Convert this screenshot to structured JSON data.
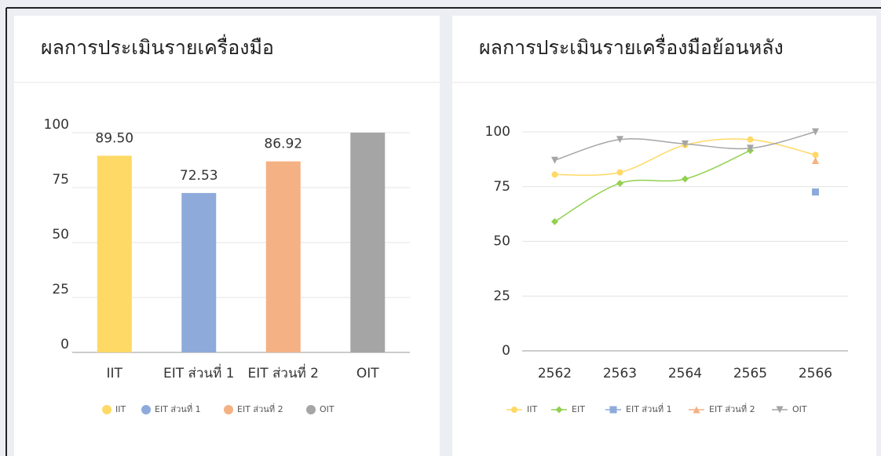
{
  "chart_data": [
    {
      "type": "bar",
      "title": "ผลการประเมินรายเครื่องมือ",
      "categories": [
        "IIT",
        "EIT ส่วนที่ 1",
        "EIT ส่วนที่ 2",
        "OIT"
      ],
      "values": [
        89.5,
        72.53,
        86.92,
        100
      ],
      "value_labels": [
        "89.50",
        "72.53",
        "86.92",
        null
      ],
      "colors": [
        "#ffd966",
        "#8eaadb",
        "#f4b183",
        "#a5a5a5"
      ],
      "ylim": [
        0,
        100
      ],
      "yticks": [
        0,
        25,
        50,
        75,
        100
      ],
      "grid": true,
      "legend": "bottom"
    },
    {
      "type": "line",
      "title": "ผลการประเมินรายเครื่องมือย้อนหลัง",
      "categories": [
        "2562",
        "2563",
        "2564",
        "2565",
        "2566"
      ],
      "series": [
        {
          "name": "IIT",
          "color": "#ffd966",
          "marker": "circle",
          "values": [
            80.5,
            81.5,
            94,
            96.5,
            89.5
          ]
        },
        {
          "name": "EIT",
          "color": "#92d050",
          "marker": "diamond",
          "values": [
            59,
            76.5,
            78.5,
            91.5,
            null
          ]
        },
        {
          "name": "EIT ส่วนที่ 1",
          "color": "#8eaadb",
          "marker": "square",
          "values": [
            null,
            null,
            null,
            null,
            72.53
          ]
        },
        {
          "name": "EIT ส่วนที่ 2",
          "color": "#f4b183",
          "marker": "triangle",
          "values": [
            null,
            null,
            null,
            null,
            86.92
          ]
        },
        {
          "name": "OIT",
          "color": "#a5a5a5",
          "marker": "triangle-down",
          "values": [
            87,
            96.5,
            94.5,
            92.5,
            100
          ]
        }
      ],
      "ylim": [
        0,
        100
      ],
      "yticks": [
        0,
        25,
        50,
        75,
        100
      ],
      "grid": true,
      "smooth": true,
      "legend": "bottom"
    }
  ]
}
